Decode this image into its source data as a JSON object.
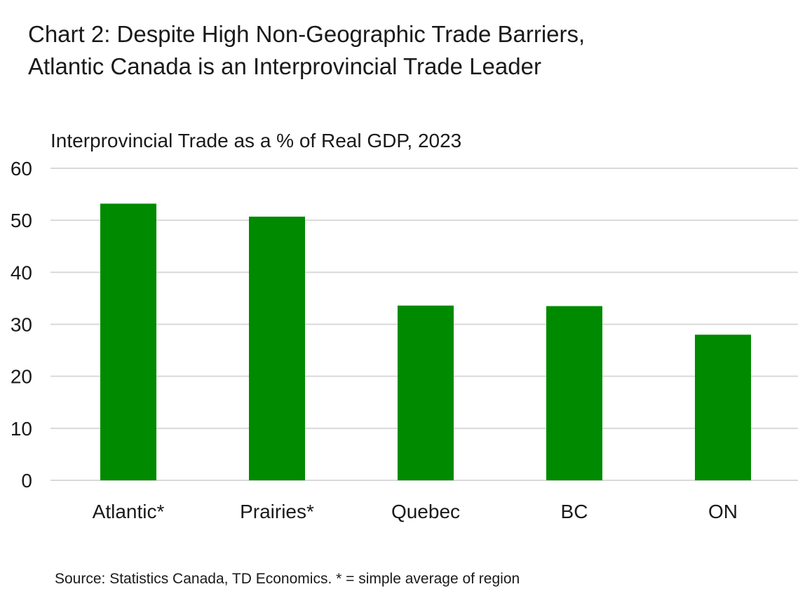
{
  "title": {
    "line1": "Chart 2: Despite High Non-Geographic Trade Barriers,",
    "line2": "Atlantic Canada is an Interprovincial Trade Leader"
  },
  "chart_data": {
    "type": "bar",
    "title": "Chart 2: Despite High Non-Geographic Trade Barriers, Atlantic Canada is an Interprovincial Trade Leader",
    "subtitle": "Interprovincial Trade as a % of Real GDP, 2023",
    "categories": [
      "Atlantic*",
      "Prairies*",
      "Quebec",
      "BC",
      "ON"
    ],
    "values": [
      53.2,
      50.7,
      33.6,
      33.5,
      28.0
    ],
    "xlabel": "",
    "ylabel": "",
    "ylim": [
      0,
      60
    ],
    "yticks": [
      "0",
      "10",
      "20",
      "30",
      "40",
      "50",
      "60"
    ],
    "grid": true,
    "bar_color": "#008a00",
    "gridline_color": "#d9d9d9"
  },
  "source": "Source: Statistics Canada, TD Economics. * = simple average of region"
}
